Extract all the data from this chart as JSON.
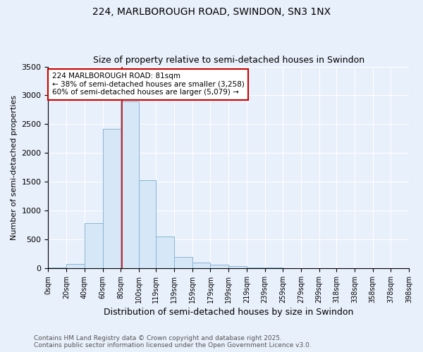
{
  "title1": "224, MARLBOROUGH ROAD, SWINDON, SN3 1NX",
  "title2": "Size of property relative to semi-detached houses in Swindon",
  "xlabel": "Distribution of semi-detached houses by size in Swindon",
  "ylabel": "Number of semi-detached properties",
  "annotation_line1": "224 MARLBOROUGH ROAD: 81sqm",
  "annotation_line2": "← 38% of semi-detached houses are smaller (3,258)",
  "annotation_line3": "60% of semi-detached houses are larger (5,079) →",
  "footer1": "Contains HM Land Registry data © Crown copyright and database right 2025.",
  "footer2": "Contains public sector information licensed under the Open Government Licence v3.0.",
  "bin_edges": [
    0,
    20,
    40,
    60,
    80,
    100,
    119,
    139,
    159,
    179,
    199,
    219,
    239,
    259,
    279,
    299,
    318,
    338,
    358,
    378,
    398
  ],
  "bin_counts": [
    10,
    75,
    780,
    2420,
    2890,
    1530,
    545,
    200,
    100,
    60,
    35,
    15,
    8,
    5,
    4,
    3,
    2,
    2,
    1,
    1
  ],
  "property_size": 81,
  "bar_color": "#d6e8f7",
  "bar_edge_color": "#8ab4d4",
  "red_line_color": "#cc0000",
  "annotation_box_facecolor": "#ffffff",
  "annotation_box_edgecolor": "#cc0000",
  "background_color": "#e8f0fb",
  "grid_color": "#ffffff",
  "ylim": [
    0,
    3500
  ],
  "yticks": [
    0,
    500,
    1000,
    1500,
    2000,
    2500,
    3000,
    3500
  ]
}
